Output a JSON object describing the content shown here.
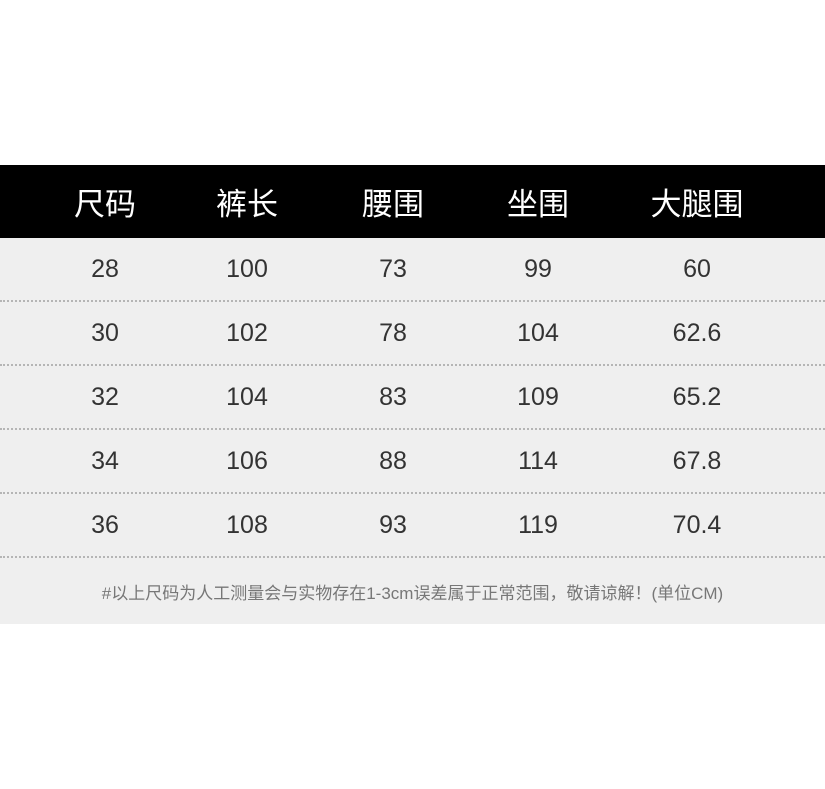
{
  "table": {
    "headers": [
      "尺码",
      "裤长",
      "腰围",
      "坐围",
      "大腿围"
    ],
    "rows": [
      [
        "28",
        "100",
        "73",
        "99",
        "60"
      ],
      [
        "30",
        "102",
        "78",
        "104",
        "62.6"
      ],
      [
        "32",
        "104",
        "83",
        "109",
        "65.2"
      ],
      [
        "34",
        "106",
        "88",
        "114",
        "67.8"
      ],
      [
        "36",
        "108",
        "93",
        "119",
        "70.4"
      ]
    ]
  },
  "footer": {
    "note": "#以上尺码为人工测量会与实物存在1-3cm误差属于正常范围，敬请谅解！(单位CM)"
  },
  "colors": {
    "header_bg": "#000000",
    "row_bg": "#efefef"
  }
}
